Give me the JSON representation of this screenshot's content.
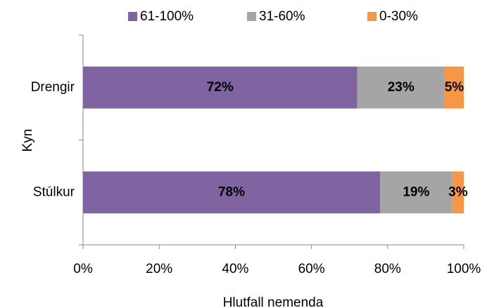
{
  "chart_data": {
    "type": "bar",
    "orientation": "horizontal",
    "stacked": true,
    "xlabel": "Hlutfall nemenda",
    "ylabel": "Kyn",
    "categories": [
      "Drengir",
      "Stúlkur"
    ],
    "series": [
      {
        "name": "61-100%",
        "color": "#8064a2",
        "values": [
          72,
          78
        ],
        "value_labels": [
          "72%",
          "78%"
        ]
      },
      {
        "name": "31-60%",
        "color": "#a5a5a5",
        "values": [
          23,
          19
        ],
        "value_labels": [
          "23%",
          "19%"
        ]
      },
      {
        "name": "0-30%",
        "color": "#f79646",
        "values": [
          5,
          3
        ],
        "value_labels": [
          "5%",
          "3%"
        ]
      }
    ],
    "xlim": [
      0,
      100
    ],
    "xticks": [
      {
        "value": 0,
        "label": "0%"
      },
      {
        "value": 20,
        "label": "20%"
      },
      {
        "value": 40,
        "label": "40%"
      },
      {
        "value": 60,
        "label": "60%"
      },
      {
        "value": 80,
        "label": "80%"
      },
      {
        "value": 100,
        "label": "100%"
      }
    ],
    "legend": "top"
  }
}
